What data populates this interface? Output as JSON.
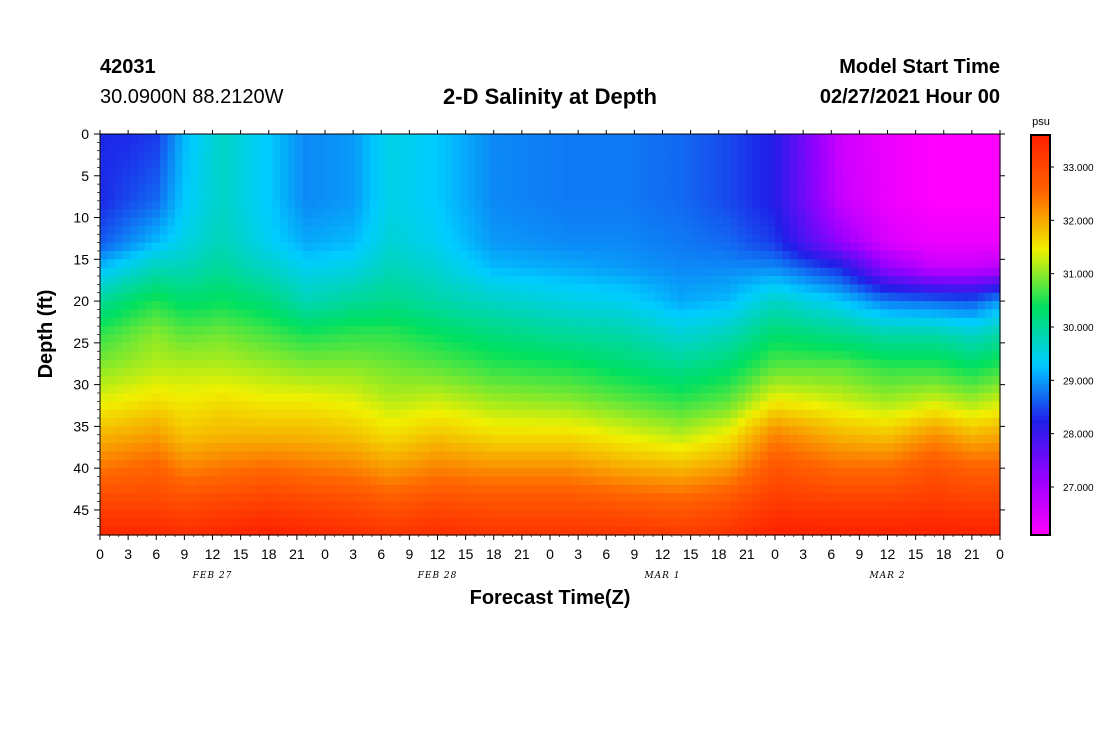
{
  "header": {
    "station_id": "42031",
    "station_coords": "30.0900N 88.2120W",
    "title": "2-D Salinity at Depth",
    "start_label": "Model Start Time",
    "start_time": "02/27/2021 Hour 00"
  },
  "chart_data": {
    "type": "heatmap",
    "title": "2-D Salinity at Depth",
    "xlabel": "Forecast Time(Z)",
    "ylabel": "Depth (ft)",
    "x_hours": [
      0,
      96
    ],
    "x_tick_labels": [
      "0",
      "3",
      "6",
      "9",
      "12",
      "15",
      "18",
      "21",
      "0",
      "3",
      "6",
      "9",
      "12",
      "15",
      "18",
      "21",
      "0",
      "3",
      "6",
      "9",
      "12",
      "15",
      "18",
      "21",
      "0",
      "3",
      "6",
      "9",
      "12",
      "15",
      "18",
      "21",
      "0"
    ],
    "date_labels": [
      {
        "label": "FEB 27",
        "hour": 12
      },
      {
        "label": "FEB 28",
        "hour": 36
      },
      {
        "label": "MAR 1",
        "hour": 60
      },
      {
        "label": "MAR 2",
        "hour": 84
      }
    ],
    "ylim": [
      0,
      48
    ],
    "y_ticks": [
      0,
      5,
      10,
      15,
      20,
      25,
      30,
      35,
      40,
      45
    ],
    "colorbar": {
      "unit": "psu",
      "range": [
        26.1,
        33.6
      ],
      "tick_values": [
        27.0,
        28.0,
        29.0,
        30.0,
        31.0,
        32.0,
        33.0
      ],
      "tick_labels": [
        "27.000",
        "28.000",
        "29.000",
        "30.000",
        "31.000",
        "32.000",
        "33.000"
      ],
      "colors": [
        "#ff00ff",
        "#9900ff",
        "#1f1fe8",
        "#00ccff",
        "#00e060",
        "#f0f000",
        "#ff6600",
        "#ff2000"
      ]
    },
    "profile_depths": [
      0,
      8,
      13,
      16,
      20,
      24,
      28,
      32,
      36,
      40,
      44,
      48
    ],
    "profiles": [
      {
        "hour": 0,
        "values": [
          28.3,
          28.3,
          28.6,
          29.2,
          30.0,
          30.6,
          31.0,
          31.4,
          31.9,
          32.4,
          33.0,
          33.5
        ]
      },
      {
        "hour": 3,
        "values": [
          28.3,
          28.5,
          28.9,
          29.5,
          30.3,
          30.8,
          31.1,
          31.5,
          32.0,
          32.5,
          33.0,
          33.5
        ]
      },
      {
        "hour": 6,
        "values": [
          28.4,
          28.7,
          29.2,
          29.8,
          30.5,
          31.0,
          31.2,
          31.6,
          32.1,
          32.6,
          33.0,
          33.5
        ]
      },
      {
        "hour": 9,
        "values": [
          29.2,
          29.3,
          29.5,
          29.8,
          30.3,
          30.8,
          31.2,
          31.5,
          31.8,
          32.3,
          32.9,
          33.4
        ]
      },
      {
        "hour": 13,
        "values": [
          29.7,
          29.7,
          29.8,
          30.0,
          30.4,
          30.9,
          31.2,
          31.6,
          31.9,
          32.4,
          33.0,
          33.5
        ]
      },
      {
        "hour": 18,
        "values": [
          29.3,
          29.3,
          29.4,
          29.7,
          30.2,
          30.7,
          31.1,
          31.5,
          31.9,
          32.5,
          33.1,
          33.6
        ]
      },
      {
        "hour": 22,
        "values": [
          28.9,
          28.9,
          29.1,
          29.4,
          29.8,
          30.5,
          31.0,
          31.5,
          31.9,
          32.4,
          33.0,
          33.5
        ]
      },
      {
        "hour": 27,
        "values": [
          29.0,
          29.0,
          29.2,
          29.5,
          30.0,
          30.6,
          31.0,
          31.4,
          31.8,
          32.3,
          32.9,
          33.4
        ]
      },
      {
        "hour": 31,
        "values": [
          29.5,
          29.5,
          29.6,
          29.8,
          30.1,
          30.6,
          30.9,
          31.2,
          31.6,
          32.1,
          32.7,
          33.3
        ]
      },
      {
        "hour": 36,
        "values": [
          29.3,
          29.3,
          29.4,
          29.6,
          29.9,
          30.4,
          30.8,
          31.3,
          31.8,
          32.3,
          32.9,
          33.4
        ]
      },
      {
        "hour": 42,
        "values": [
          28.9,
          28.9,
          29.0,
          29.2,
          29.7,
          30.2,
          30.6,
          31.1,
          31.6,
          32.2,
          32.8,
          33.3
        ]
      },
      {
        "hour": 50,
        "values": [
          28.8,
          28.8,
          28.9,
          29.1,
          29.5,
          30.0,
          30.5,
          31.0,
          31.6,
          32.2,
          32.8,
          33.3
        ]
      },
      {
        "hour": 56,
        "values": [
          28.8,
          28.8,
          28.9,
          29.0,
          29.4,
          29.9,
          30.3,
          30.8,
          31.4,
          32.0,
          32.7,
          33.3
        ]
      },
      {
        "hour": 62,
        "values": [
          28.7,
          28.7,
          28.8,
          28.9,
          29.1,
          29.6,
          30.1,
          30.6,
          31.2,
          31.9,
          32.6,
          33.2
        ]
      },
      {
        "hour": 67,
        "values": [
          28.5,
          28.5,
          28.7,
          28.9,
          29.2,
          29.8,
          30.3,
          30.8,
          31.5,
          32.1,
          32.8,
          33.3
        ]
      },
      {
        "hour": 72,
        "values": [
          28.2,
          28.2,
          28.4,
          28.9,
          29.7,
          30.3,
          30.8,
          31.5,
          32.3,
          32.8,
          33.2,
          33.6
        ]
      },
      {
        "hour": 79,
        "values": [
          26.6,
          26.7,
          27.2,
          28.3,
          29.3,
          30.1,
          30.8,
          31.3,
          31.9,
          32.5,
          33.1,
          33.6
        ]
      },
      {
        "hour": 84,
        "values": [
          26.3,
          26.3,
          26.5,
          27.2,
          28.8,
          29.9,
          30.6,
          31.1,
          31.8,
          32.5,
          33.1,
          33.6
        ]
      },
      {
        "hour": 89,
        "values": [
          26.1,
          26.1,
          26.3,
          26.7,
          28.7,
          29.9,
          30.6,
          31.3,
          32.2,
          32.8,
          33.2,
          33.6
        ]
      },
      {
        "hour": 93,
        "values": [
          26.1,
          26.1,
          26.3,
          26.7,
          28.6,
          29.7,
          30.4,
          31.1,
          31.9,
          32.6,
          33.1,
          33.6
        ]
      },
      {
        "hour": 96,
        "values": [
          26.1,
          26.1,
          26.3,
          26.8,
          29.0,
          29.9,
          30.6,
          31.3,
          32.0,
          32.6,
          33.1,
          33.6
        ]
      }
    ]
  }
}
